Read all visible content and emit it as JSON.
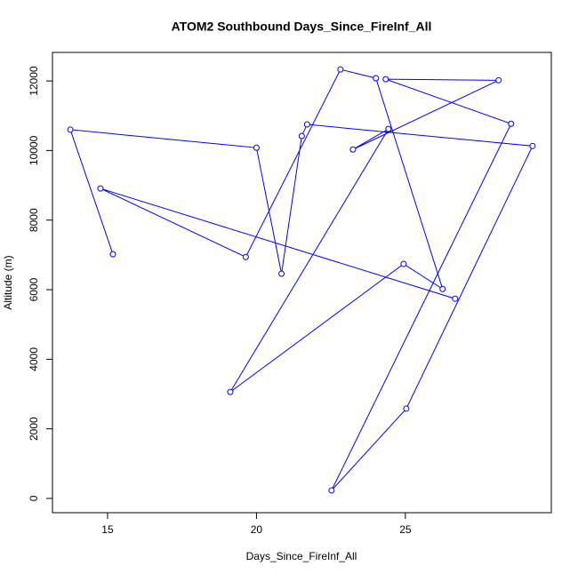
{
  "chart_data": {
    "type": "line",
    "title": "ATOM2 Southbound Days_Since_FireInf_All",
    "x_label": "Days_Since_FireInf_All",
    "y_label": "Altitude (m)",
    "series": [
      {
        "color": "#0000ff",
        "x": [
          15.18,
          13.75,
          20.0,
          20.84,
          21.52,
          21.7,
          29.27,
          25.03,
          22.52,
          28.55,
          24.34,
          28.13,
          23.24,
          24.43,
          19.12,
          24.94,
          26.25,
          24.01,
          22.82,
          19.64,
          14.76,
          26.67
        ],
        "values": [
          7020,
          10600,
          10080,
          6460,
          10420,
          10750,
          10130,
          2580,
          230,
          10770,
          12050,
          12020,
          10030,
          10620,
          3060,
          6740,
          6020,
          12080,
          12330,
          6940,
          8910,
          5740
        ]
      }
    ],
    "xlim": [
      13.15,
      29.9
    ],
    "xticks": [
      15,
      20,
      25
    ],
    "ylim": [
      -410,
      12820
    ],
    "yticks": [
      0,
      2000,
      4000,
      6000,
      8000,
      10000,
      12000
    ],
    "markers": true,
    "grid": false
  }
}
